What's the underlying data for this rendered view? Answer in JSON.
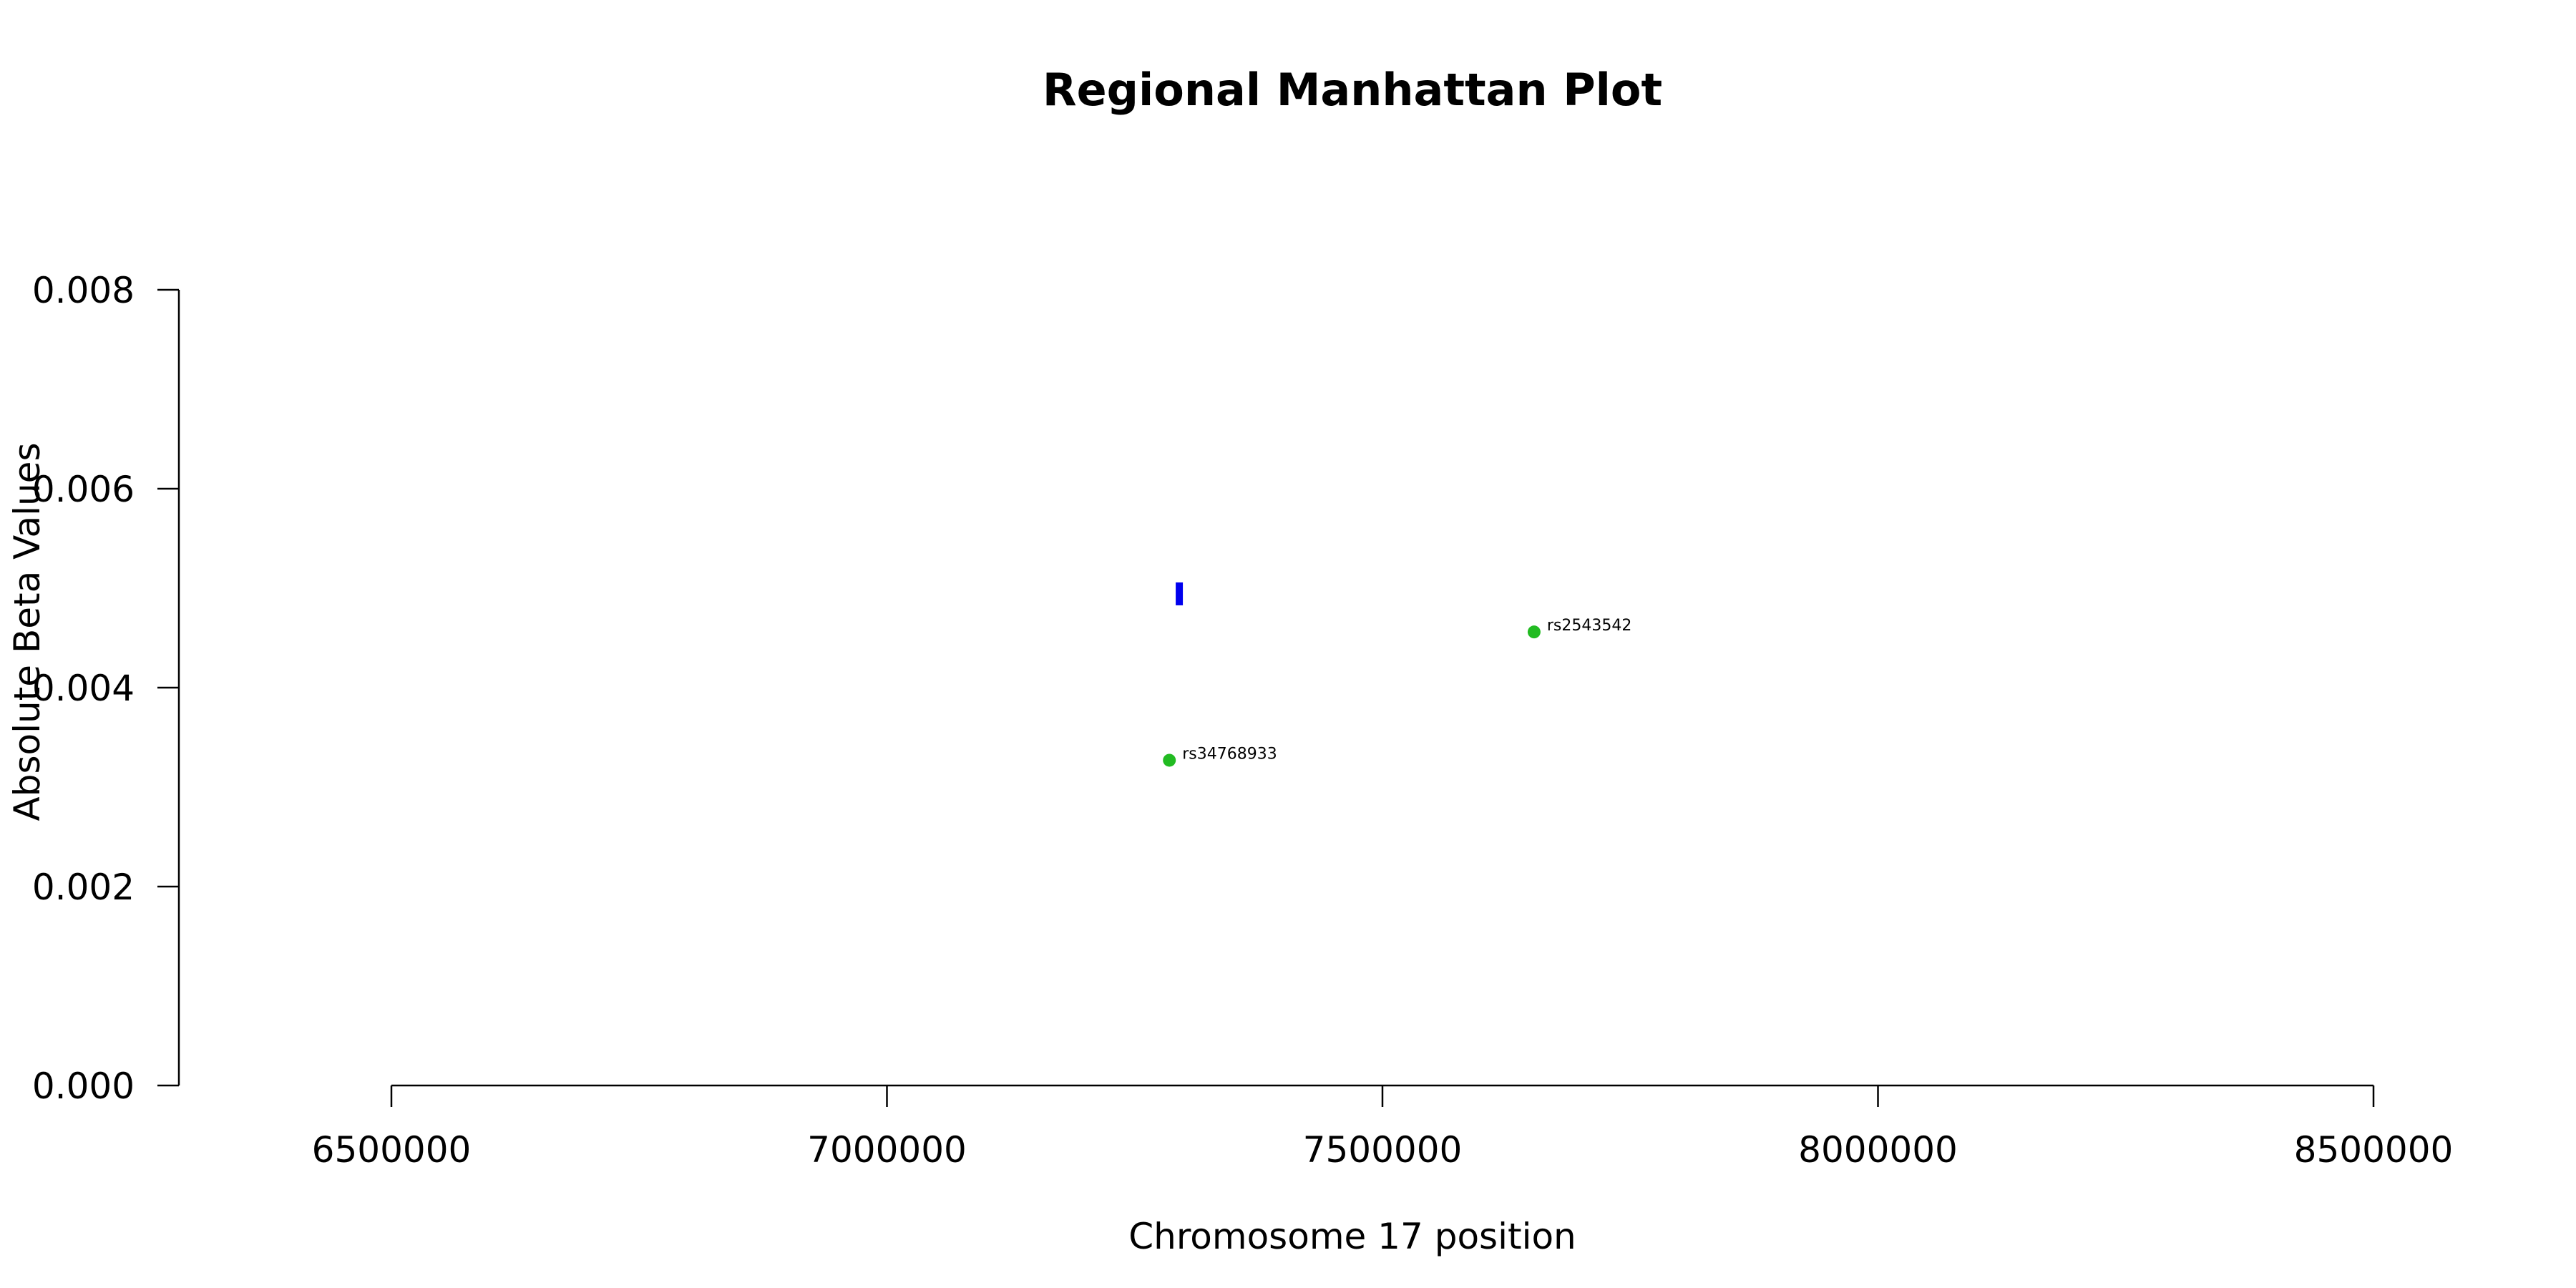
{
  "chart_data": {
    "type": "scatter",
    "title": "Regional Manhattan Plot",
    "xlabel": "Chromosome 17 position",
    "ylabel": "Absolute Beta Values",
    "xlim": [
      6500000,
      8500000
    ],
    "ylim": [
      0,
      0.008
    ],
    "x_ticks": [
      6500000,
      7000000,
      7500000,
      8000000,
      8500000
    ],
    "x_tick_labels": [
      "6500000",
      "7000000",
      "7500000",
      "8000000",
      "8500000"
    ],
    "y_ticks": [
      0,
      0.002,
      0.004,
      0.006,
      0.008
    ],
    "y_tick_labels": [
      "0.000",
      "0.002",
      "0.004",
      "0.006",
      "0.008"
    ],
    "grid": false,
    "points": [
      {
        "x": 7285000,
        "y": 0.00327,
        "label": "rs34768933",
        "color": "#22bb22"
      },
      {
        "x": 7653000,
        "y": 0.00456,
        "label": "rs2543542",
        "color": "#22bb22"
      }
    ],
    "markers": [
      {
        "x": 7295000,
        "y": 0.00495,
        "shape": "vertical-bar",
        "color": "#0000ee"
      }
    ]
  }
}
